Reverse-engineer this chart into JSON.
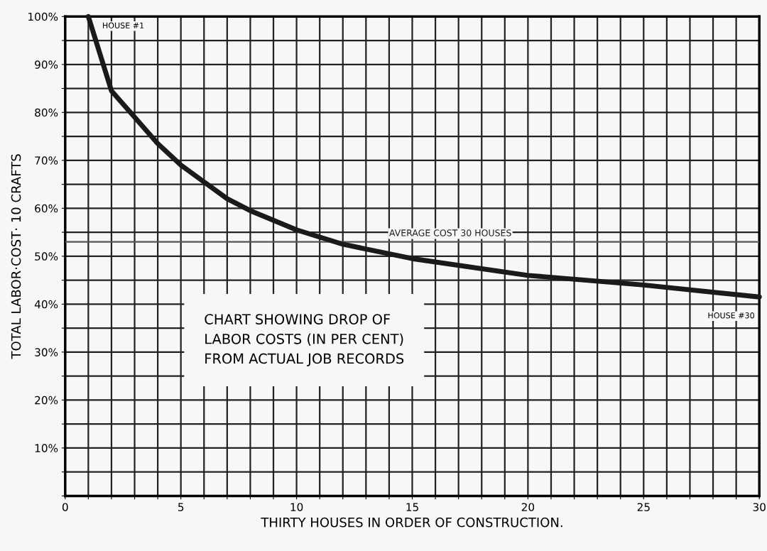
{
  "chart_data": {
    "type": "line",
    "title": "CHART SHOWING DROP OF\nLABOR COSTS (IN PER CENT)\nFROM ACTUAL JOB RECORDS",
    "xlabel": "THIRTY HOUSES IN ORDER OF CONSTRUCTION.",
    "ylabel": "TOTAL LABOR·COST· 10 CRAFTS",
    "x": [
      1,
      2,
      3,
      4,
      5,
      6,
      7,
      8,
      10,
      12,
      15,
      20,
      25,
      30
    ],
    "series": [
      {
        "color": "#1a1a1a",
        "values": [
          100,
          84.5,
          79,
          73.5,
          69,
          65.5,
          62,
          59.5,
          55.5,
          52.5,
          49.5,
          46,
          44,
          41.5
        ]
      }
    ],
    "xlim": [
      0,
      30
    ],
    "ylim": [
      0,
      100
    ],
    "xticks": [
      0,
      {
        "value": 1,
        "label": null
      },
      {
        "value": 2,
        "label": null
      },
      {
        "value": 3,
        "label": null
      },
      {
        "value": 4,
        "label": null
      },
      5,
      {
        "value": 6,
        "label": null
      },
      {
        "value": 7,
        "label": null
      },
      {
        "value": 8,
        "label": null
      },
      {
        "value": 9,
        "label": null
      },
      10,
      {
        "value": 11,
        "label": null
      },
      {
        "value": 12,
        "label": null
      },
      {
        "value": 13,
        "label": null
      },
      {
        "value": 14,
        "label": null
      },
      15,
      {
        "value": 16,
        "label": null
      },
      {
        "value": 17,
        "label": null
      },
      {
        "value": 18,
        "label": null
      },
      {
        "value": 19,
        "label": null
      },
      20,
      {
        "value": 21,
        "label": null
      },
      {
        "value": 22,
        "label": null
      },
      {
        "value": 23,
        "label": null
      },
      {
        "value": 24,
        "label": null
      },
      25,
      {
        "value": 26,
        "label": null
      },
      {
        "value": 27,
        "label": null
      },
      {
        "value": 28,
        "label": null
      },
      {
        "value": 29,
        "label": null
      },
      30
    ],
    "yticks": [
      {
        "value": 0,
        "label": null
      },
      {
        "value": 5,
        "label": null
      },
      {
        "value": 10,
        "label": "10%"
      },
      {
        "value": 15,
        "label": null
      },
      {
        "value": 20,
        "label": "20%"
      },
      {
        "value": 25,
        "label": null
      },
      {
        "value": 30,
        "label": "30%"
      },
      {
        "value": 35,
        "label": null
      },
      {
        "value": 40,
        "label": "40%"
      },
      {
        "value": 45,
        "label": null
      },
      {
        "value": 50,
        "label": "50%"
      },
      {
        "value": 55,
        "label": null
      },
      {
        "value": 60,
        "label": "60%"
      },
      {
        "value": 65,
        "label": null
      },
      {
        "value": 70,
        "label": "70%"
      },
      {
        "value": 75,
        "label": null
      },
      {
        "value": 80,
        "label": "80%"
      },
      {
        "value": 85,
        "label": null
      },
      {
        "value": 90,
        "label": "90%"
      },
      {
        "value": 95,
        "label": null
      },
      {
        "value": 100,
        "label": "100%"
      }
    ],
    "ref_lines": [
      {
        "axis": "y",
        "value": 53,
        "label": "AVERAGE COST 30 HOUSES",
        "color": "#555555",
        "line_style": "solid"
      }
    ],
    "annotations": [
      {
        "text": "HOUSE #1",
        "x": 1,
        "y": 100
      },
      {
        "text": "HOUSE #30",
        "x": 30,
        "y": 41.5
      }
    ],
    "grid": true,
    "marker": "none",
    "line_style": "solid"
  }
}
